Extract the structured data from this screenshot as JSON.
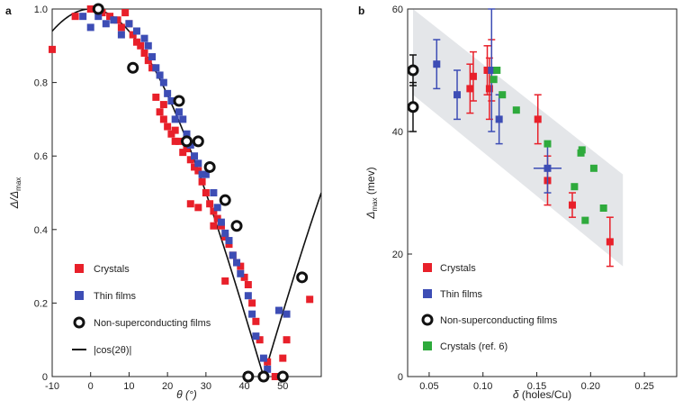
{
  "chart_data": [
    {
      "panel": "a",
      "type": "scatter",
      "xlabel": "θ (°)",
      "ylabel": "Δ/Δmax",
      "xlim": [
        -10,
        60
      ],
      "ylim": [
        0,
        1.0
      ],
      "xticks": [
        -10,
        0,
        10,
        20,
        30,
        40,
        50
      ],
      "yticks": [
        0,
        0.2,
        0.4,
        0.6,
        0.8,
        1.0
      ],
      "legend_position": "bottom-left",
      "colors": {
        "crystals": "#e8202a",
        "thin_films": "#3d4db5",
        "nsc": "#111111",
        "curve": "#111111"
      },
      "series": [
        {
          "name": "Crystals",
          "marker": "square",
          "points": [
            [
              -10,
              0.89
            ],
            [
              -4,
              0.98
            ],
            [
              0,
              1.0
            ],
            [
              3,
              0.99
            ],
            [
              5,
              0.98
            ],
            [
              7,
              0.97
            ],
            [
              8,
              0.95
            ],
            [
              9,
              0.99
            ],
            [
              10,
              0.96
            ],
            [
              11,
              0.93
            ],
            [
              12,
              0.91
            ],
            [
              13,
              0.9
            ],
            [
              14,
              0.88
            ],
            [
              15,
              0.86
            ],
            [
              16,
              0.84
            ],
            [
              17,
              0.76
            ],
            [
              18,
              0.72
            ],
            [
              19,
              0.7
            ],
            [
              20,
              0.68
            ],
            [
              21,
              0.66
            ],
            [
              22,
              0.67
            ],
            [
              23,
              0.64
            ],
            [
              24,
              0.61
            ],
            [
              25,
              0.62
            ],
            [
              26,
              0.59
            ],
            [
              27,
              0.57
            ],
            [
              28,
              0.56
            ],
            [
              29,
              0.53
            ],
            [
              30,
              0.5
            ],
            [
              31,
              0.47
            ],
            [
              32,
              0.45
            ],
            [
              33,
              0.43
            ],
            [
              34,
              0.41
            ],
            [
              35,
              0.38
            ],
            [
              36,
              0.36
            ],
            [
              37,
              0.33
            ],
            [
              38,
              0.31
            ],
            [
              39,
              0.3
            ],
            [
              40,
              0.27
            ],
            [
              41,
              0.25
            ],
            [
              42,
              0.2
            ],
            [
              43,
              0.15
            ],
            [
              44,
              0.1
            ],
            [
              46,
              0.04
            ],
            [
              48,
              0.0
            ],
            [
              50,
              0.05
            ],
            [
              51,
              0.1
            ],
            [
              57,
              0.21
            ],
            [
              26,
              0.47
            ],
            [
              28,
              0.46
            ],
            [
              32,
              0.41
            ],
            [
              35,
              0.26
            ],
            [
              22,
              0.64
            ],
            [
              19,
              0.74
            ]
          ]
        },
        {
          "name": "Thin films",
          "marker": "square",
          "points": [
            [
              -2,
              0.98
            ],
            [
              0,
              0.95
            ],
            [
              2,
              0.98
            ],
            [
              4,
              0.96
            ],
            [
              6,
              0.97
            ],
            [
              8,
              0.93
            ],
            [
              10,
              0.96
            ],
            [
              12,
              0.94
            ],
            [
              14,
              0.92
            ],
            [
              15,
              0.9
            ],
            [
              16,
              0.87
            ],
            [
              17,
              0.84
            ],
            [
              18,
              0.82
            ],
            [
              19,
              0.8
            ],
            [
              20,
              0.77
            ],
            [
              21,
              0.75
            ],
            [
              23,
              0.72
            ],
            [
              24,
              0.7
            ],
            [
              25,
              0.66
            ],
            [
              26,
              0.63
            ],
            [
              27,
              0.6
            ],
            [
              28,
              0.58
            ],
            [
              30,
              0.55
            ],
            [
              32,
              0.5
            ],
            [
              33,
              0.46
            ],
            [
              34,
              0.42
            ],
            [
              35,
              0.39
            ],
            [
              36,
              0.37
            ],
            [
              37,
              0.33
            ],
            [
              38,
              0.31
            ],
            [
              39,
              0.28
            ],
            [
              41,
              0.22
            ],
            [
              42,
              0.17
            ],
            [
              43,
              0.11
            ],
            [
              45,
              0.05
            ],
            [
              46,
              0.02
            ],
            [
              49,
              0.18
            ],
            [
              51,
              0.17
            ],
            [
              22,
              0.7
            ],
            [
              29,
              0.55
            ]
          ]
        },
        {
          "name": "Non-superconducting films",
          "marker": "circle-open",
          "points": [
            [
              2,
              1.0
            ],
            [
              11,
              0.84
            ],
            [
              23,
              0.75
            ],
            [
              25,
              0.64
            ],
            [
              28,
              0.64
            ],
            [
              31,
              0.57
            ],
            [
              35,
              0.48
            ],
            [
              38,
              0.41
            ],
            [
              41,
              0.0
            ],
            [
              45,
              0.0
            ],
            [
              50,
              0.0
            ],
            [
              55,
              0.27
            ]
          ]
        }
      ],
      "curve": {
        "name": "|cos(2θ)|",
        "function": "abs(cos(2*theta_deg))",
        "x_range": [
          -10,
          60
        ]
      },
      "legend": [
        "Crystals",
        "Thin films",
        "Non-superconducting films",
        "|cos(2θ)|"
      ]
    },
    {
      "panel": "b",
      "type": "scatter",
      "xlabel": "δ (holes/Cu)",
      "ylabel": "Δmax (mev)",
      "xlim": [
        0.03,
        0.28
      ],
      "ylim": [
        0,
        60
      ],
      "xticks": [
        0.05,
        0.1,
        0.15,
        0.2,
        0.25
      ],
      "yticks": [
        0,
        20,
        40,
        60
      ],
      "legend_position": "bottom-left",
      "colors": {
        "crystals": "#e8202a",
        "thin_films": "#3d4db5",
        "nsc": "#111111",
        "crystals_ref6": "#2eaa3c",
        "band": "#e4e6e9"
      },
      "band": {
        "upper": [
          [
            0.035,
            60
          ],
          [
            0.23,
            33
          ]
        ],
        "lower": [
          [
            0.035,
            46
          ],
          [
            0.23,
            18
          ]
        ]
      },
      "series": [
        {
          "name": "Crystals",
          "marker": "square",
          "points": [
            {
              "x": 0.088,
              "y": 47,
              "err": 4
            },
            {
              "x": 0.091,
              "y": 49,
              "err": 4
            },
            {
              "x": 0.104,
              "y": 50,
              "err": 4
            },
            {
              "x": 0.106,
              "y": 47,
              "err": 5
            },
            {
              "x": 0.108,
              "y": 50,
              "err": 5
            },
            {
              "x": 0.151,
              "y": 42,
              "err": 4
            },
            {
              "x": 0.16,
              "y": 32,
              "err": 4
            },
            {
              "x": 0.183,
              "y": 28,
              "err": 2
            },
            {
              "x": 0.218,
              "y": 22,
              "err": 4
            }
          ]
        },
        {
          "name": "Thin films",
          "marker": "square",
          "points": [
            {
              "x": 0.057,
              "y": 51,
              "err": 4
            },
            {
              "x": 0.076,
              "y": 46,
              "err": 4
            },
            {
              "x": 0.108,
              "y": 50,
              "err": 10
            },
            {
              "x": 0.115,
              "y": 42,
              "err": 4
            },
            {
              "x": 0.16,
              "y": 34,
              "err": 4,
              "xerr": 0.013
            }
          ]
        },
        {
          "name": "Non-superconducting films",
          "marker": "circle-open",
          "points": [
            {
              "x": 0.035,
              "y": 50,
              "err": 2.5
            },
            {
              "x": 0.035,
              "y": 44,
              "err": 4
            }
          ]
        },
        {
          "name": "Crystals (ref. 6)",
          "marker": "square",
          "points": [
            {
              "x": 0.11,
              "y": 48.5
            },
            {
              "x": 0.113,
              "y": 50
            },
            {
              "x": 0.118,
              "y": 46
            },
            {
              "x": 0.131,
              "y": 43.5
            },
            {
              "x": 0.16,
              "y": 38
            },
            {
              "x": 0.185,
              "y": 31
            },
            {
              "x": 0.191,
              "y": 36.5
            },
            {
              "x": 0.192,
              "y": 37
            },
            {
              "x": 0.195,
              "y": 25.5
            },
            {
              "x": 0.203,
              "y": 34
            },
            {
              "x": 0.212,
              "y": 27.5
            }
          ]
        }
      ],
      "legend": [
        "Crystals",
        "Thin films",
        "Non-superconducting films",
        "Crystals (ref. 6)"
      ]
    }
  ]
}
